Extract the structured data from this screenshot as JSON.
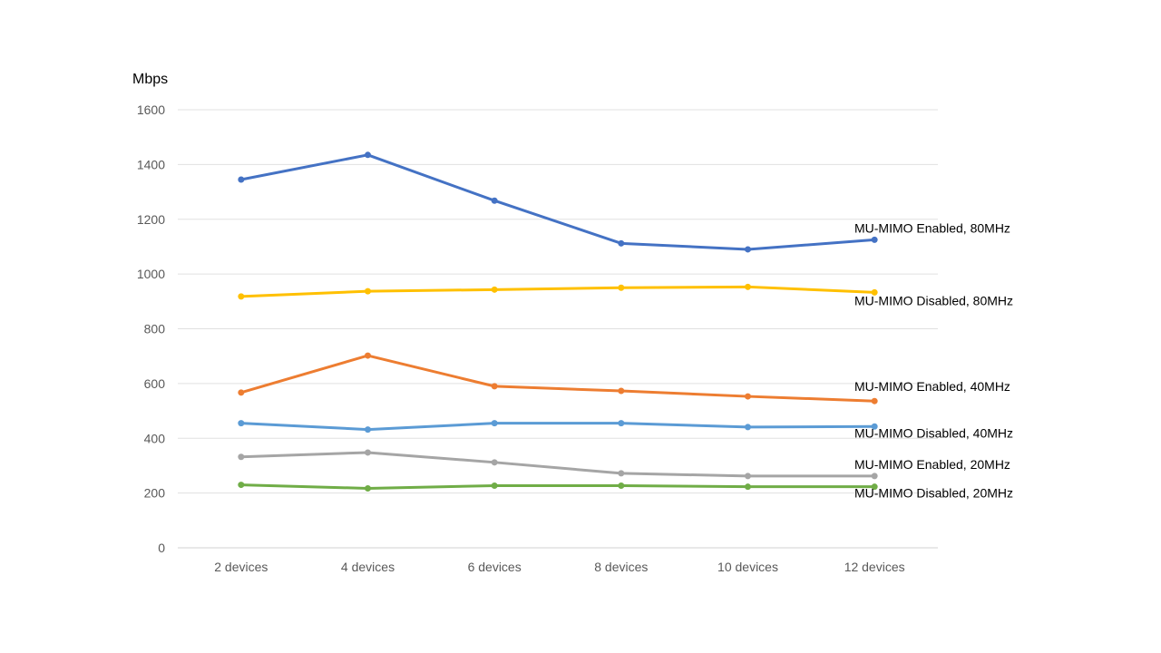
{
  "chart_data": {
    "type": "line",
    "title": "",
    "xlabel": "",
    "ylabel": "Mbps",
    "ylim": [
      0,
      1600
    ],
    "yticks": [
      0,
      200,
      400,
      600,
      800,
      1000,
      1200,
      1400,
      1600
    ],
    "categories": [
      "2 devices",
      "4 devices",
      "6 devices",
      "8 devices",
      "10 devices",
      "12 devices"
    ],
    "grid": true,
    "legend": "inline labels at right end of each line",
    "series": [
      {
        "name": "MU-MIMO Enabled, 80MHz",
        "color": "#4472C4",
        "values": [
          1345,
          1435,
          1268,
          1112,
          1090,
          1125
        ]
      },
      {
        "name": "MU-MIMO Disabled, 80MHz",
        "color": "#FFC000",
        "values": [
          918,
          937,
          943,
          950,
          953,
          933
        ]
      },
      {
        "name": "MU-MIMO Enabled, 40MHz",
        "color": "#ED7D31",
        "values": [
          567,
          702,
          590,
          573,
          553,
          536
        ]
      },
      {
        "name": "MU-MIMO Disabled, 40MHz",
        "color": "#5B9BD5",
        "values": [
          455,
          432,
          455,
          455,
          441,
          443
        ]
      },
      {
        "name": "MU-MIMO Enabled, 20MHz",
        "color": "#A5A5A5",
        "values": [
          332,
          348,
          312,
          272,
          262,
          262
        ]
      },
      {
        "name": "MU-MIMO Disabled, 20MHz",
        "color": "#70AD47",
        "values": [
          230,
          217,
          227,
          227,
          223,
          223
        ]
      }
    ]
  }
}
